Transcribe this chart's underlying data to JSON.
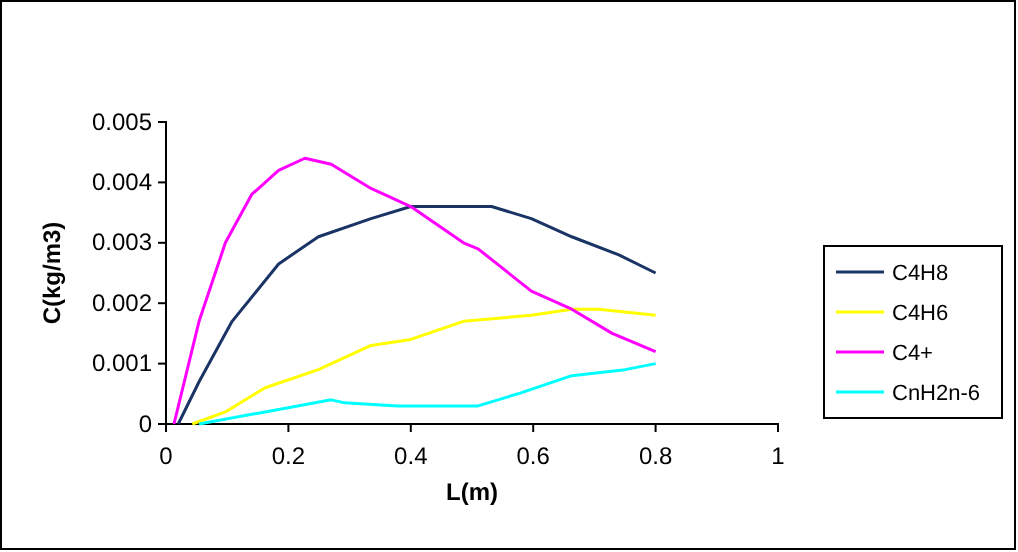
{
  "chart_data": {
    "type": "line",
    "xlabel": "L(m)",
    "ylabel": "C(kg/m3)",
    "xlim": [
      0,
      1
    ],
    "xticks": [
      0,
      0.2,
      0.4,
      0.6,
      0.8,
      1
    ],
    "ylim": [
      0,
      0.005
    ],
    "yticks": [
      0,
      0.001,
      0.002,
      0.003,
      0.004,
      0.005
    ],
    "grid": false,
    "legend": "right",
    "marker": "none",
    "line_style": "solid",
    "series": [
      {
        "name": "C4H8",
        "color": "#1a3466",
        "x": [
          0.02,
          0.054,
          0.108,
          0.184,
          0.249,
          0.335,
          0.4,
          0.465,
          0.488,
          0.532,
          0.597,
          0.663,
          0.74,
          0.8
        ],
        "values": [
          0,
          0.0007,
          0.0017,
          0.00265,
          0.0031,
          0.0034,
          0.0036,
          0.0036,
          0.0036,
          0.0036,
          0.0034,
          0.0031,
          0.0028,
          0.0025
        ]
      },
      {
        "name": "C4H6",
        "color": "#ffff00",
        "x": [
          0.043,
          0.097,
          0.162,
          0.249,
          0.335,
          0.4,
          0.486,
          0.597,
          0.663,
          0.707,
          0.8
        ],
        "values": [
          0,
          0.0002,
          0.0006,
          0.0009,
          0.0013,
          0.0014,
          0.0017,
          0.0018,
          0.0019,
          0.0019,
          0.0018
        ]
      },
      {
        "name": "C4+",
        "color": "#ff00ff",
        "x": [
          0.013,
          0.054,
          0.097,
          0.14,
          0.184,
          0.227,
          0.27,
          0.335,
          0.4,
          0.486,
          0.51,
          0.597,
          0.663,
          0.729,
          0.8
        ],
        "values": [
          0,
          0.0017,
          0.003,
          0.0038,
          0.0042,
          0.0044,
          0.0043,
          0.0039,
          0.0036,
          0.003,
          0.0029,
          0.0022,
          0.0019,
          0.0015,
          0.0012
        ]
      },
      {
        "name": "CnH2n-6",
        "color": "#00ffff",
        "x": [
          0.054,
          0.162,
          0.27,
          0.292,
          0.378,
          0.51,
          0.575,
          0.663,
          0.75,
          0.8
        ],
        "values": [
          0,
          0.0002,
          0.0004,
          0.00035,
          0.0003,
          0.0003,
          0.0005,
          0.0008,
          0.0009,
          0.001
        ]
      }
    ]
  }
}
